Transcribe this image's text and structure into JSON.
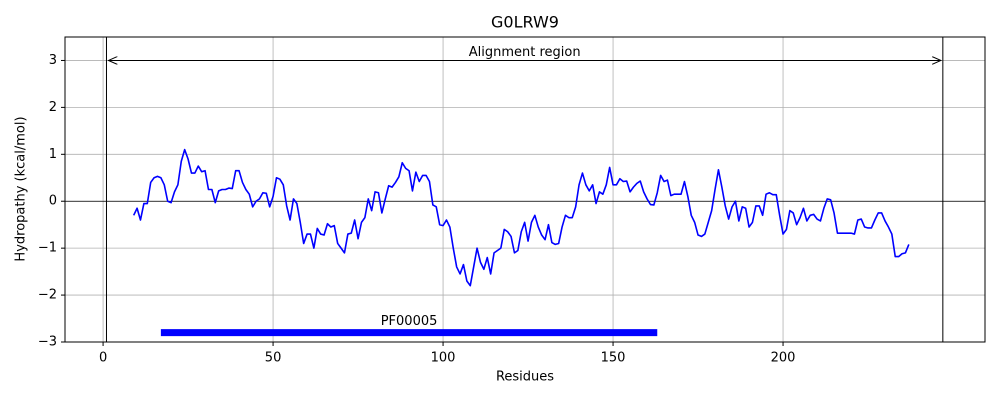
{
  "chart_data": {
    "type": "line",
    "title": "G0LRW9",
    "x_label": "Residues",
    "y_label": "Hydropathy (kcal/mol)",
    "x": [
      9,
      10,
      11,
      12,
      13,
      14,
      15,
      16,
      17,
      18,
      19,
      20,
      21,
      22,
      23,
      24,
      25,
      26,
      27,
      28,
      29,
      30,
      31,
      32,
      33,
      34,
      35,
      36,
      37,
      38,
      39,
      40,
      41,
      42,
      43,
      44,
      45,
      46,
      47,
      48,
      49,
      50,
      51,
      52,
      53,
      54,
      55,
      56,
      57,
      58,
      59,
      60,
      61,
      62,
      63,
      64,
      65,
      66,
      67,
      68,
      69,
      70,
      71,
      72,
      73,
      74,
      75,
      76,
      77,
      78,
      79,
      80,
      81,
      82,
      83,
      84,
      85,
      86,
      87,
      88,
      89,
      90,
      91,
      92,
      93,
      94,
      95,
      96,
      97,
      98,
      99,
      100,
      101,
      102,
      103,
      104,
      105,
      106,
      107,
      108,
      109,
      110,
      111,
      112,
      113,
      114,
      115,
      116,
      117,
      118,
      119,
      120,
      121,
      122,
      123,
      124,
      125,
      126,
      127,
      128,
      129,
      130,
      131,
      132,
      133,
      134,
      135,
      136,
      137,
      138,
      139,
      140,
      141,
      142,
      143,
      144,
      145,
      146,
      147,
      148,
      149,
      150,
      151,
      152,
      153,
      154,
      155,
      156,
      157,
      158,
      159,
      160,
      161,
      162,
      163,
      164,
      165,
      166,
      167,
      168,
      169,
      170,
      171,
      172,
      173,
      174,
      175,
      176,
      177,
      178,
      179,
      180,
      181,
      182,
      183,
      184,
      185,
      186,
      187,
      188,
      189,
      190,
      191,
      192,
      193,
      194,
      195,
      196,
      197,
      198,
      199,
      200,
      201,
      202,
      203,
      204,
      205,
      206,
      207,
      208,
      209,
      210,
      211,
      212,
      213,
      214,
      215,
      216,
      217,
      218,
      219,
      220,
      221,
      222,
      223,
      224,
      225,
      226,
      227,
      228,
      229,
      230,
      231,
      232,
      233,
      234,
      235,
      236,
      237
    ],
    "series": [
      {
        "color": "#0000ff",
        "values": [
          -0.3,
          -0.15,
          -0.4,
          -0.05,
          -0.05,
          0.4,
          0.5,
          0.53,
          0.5,
          0.35,
          0.0,
          -0.03,
          0.2,
          0.35,
          0.85,
          1.1,
          0.9,
          0.6,
          0.6,
          0.75,
          0.63,
          0.65,
          0.25,
          0.25,
          -0.03,
          0.22,
          0.25,
          0.25,
          0.28,
          0.27,
          0.65,
          0.65,
          0.4,
          0.25,
          0.15,
          -0.12,
          0.0,
          0.05,
          0.18,
          0.17,
          -0.12,
          0.1,
          0.5,
          0.47,
          0.35,
          -0.1,
          -0.4,
          0.05,
          -0.05,
          -0.45,
          -0.9,
          -0.7,
          -0.7,
          -1.0,
          -0.58,
          -0.7,
          -0.72,
          -0.48,
          -0.55,
          -0.52,
          -0.9,
          -1.0,
          -1.1,
          -0.7,
          -0.68,
          -0.4,
          -0.8,
          -0.45,
          -0.35,
          0.05,
          -0.2,
          0.2,
          0.18,
          -0.25,
          0.05,
          0.33,
          0.3,
          0.4,
          0.52,
          0.82,
          0.7,
          0.65,
          0.22,
          0.62,
          0.42,
          0.55,
          0.55,
          0.42,
          -0.08,
          -0.12,
          -0.5,
          -0.52,
          -0.4,
          -0.55,
          -1.0,
          -1.4,
          -1.55,
          -1.35,
          -1.7,
          -1.8,
          -1.4,
          -1.0,
          -1.3,
          -1.45,
          -1.2,
          -1.55,
          -1.1,
          -1.05,
          -1.0,
          -0.6,
          -0.65,
          -0.75,
          -1.1,
          -1.05,
          -0.65,
          -0.45,
          -0.85,
          -0.45,
          -0.3,
          -0.55,
          -0.72,
          -0.82,
          -0.5,
          -0.88,
          -0.92,
          -0.9,
          -0.55,
          -0.3,
          -0.35,
          -0.35,
          -0.12,
          0.35,
          0.6,
          0.35,
          0.22,
          0.35,
          -0.05,
          0.2,
          0.15,
          0.35,
          0.72,
          0.35,
          0.35,
          0.48,
          0.42,
          0.43,
          0.2,
          0.3,
          0.38,
          0.43,
          0.2,
          0.05,
          -0.07,
          -0.08,
          0.18,
          0.55,
          0.42,
          0.45,
          0.12,
          0.15,
          0.15,
          0.15,
          0.42,
          0.1,
          -0.3,
          -0.45,
          -0.72,
          -0.75,
          -0.7,
          -0.45,
          -0.2,
          0.25,
          0.67,
          0.3,
          -0.1,
          -0.38,
          -0.12,
          0.0,
          -0.42,
          -0.12,
          -0.15,
          -0.55,
          -0.45,
          -0.1,
          -0.1,
          -0.3,
          0.15,
          0.18,
          0.14,
          0.14,
          -0.3,
          -0.7,
          -0.6,
          -0.2,
          -0.25,
          -0.5,
          -0.35,
          -0.15,
          -0.42,
          -0.3,
          -0.28,
          -0.38,
          -0.42,
          -0.15,
          0.05,
          0.03,
          -0.25,
          -0.68,
          -0.68,
          -0.68,
          -0.68,
          -0.68,
          -0.7,
          -0.4,
          -0.38,
          -0.55,
          -0.57,
          -0.57,
          -0.4,
          -0.25,
          -0.25,
          -0.42,
          -0.55,
          -0.7,
          -1.18,
          -1.18,
          -1.12,
          -1.1,
          -0.92
        ]
      }
    ],
    "xlim": [
      -11.2,
      259.4
    ],
    "ylim": [
      -3,
      3.5
    ],
    "xticks": [
      0,
      50,
      100,
      150,
      200
    ],
    "yticks": [
      {
        "value": -3,
        "label": "−3"
      },
      {
        "value": -2,
        "label": "−2"
      },
      {
        "value": -1,
        "label": "−1"
      },
      0,
      1,
      2,
      3
    ],
    "grid": true,
    "alignment_region": {
      "label": "Alignment region",
      "start": 1,
      "end": 247,
      "y": 3
    },
    "domain": {
      "label": "PF00005",
      "start": 17,
      "end": 163,
      "y": -2.8,
      "color": "#0000ff"
    }
  }
}
